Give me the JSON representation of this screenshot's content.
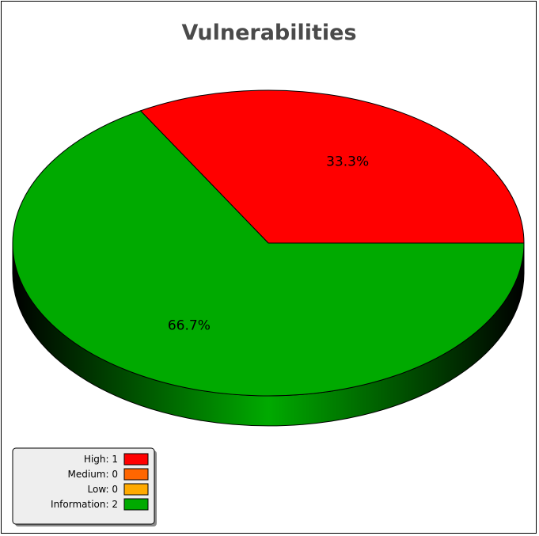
{
  "chart_data": {
    "type": "pie",
    "title": "Vulnerabilities",
    "slices": [
      {
        "label": "High",
        "value": 1,
        "color": "#ff0000",
        "percent_label": "33.3%"
      },
      {
        "label": "Medium",
        "value": 0,
        "color": "#ff6600",
        "percent_label": ""
      },
      {
        "label": "Low",
        "value": 0,
        "color": "#ffaa00",
        "percent_label": ""
      },
      {
        "label": "Information",
        "value": 2,
        "color": "#00aa00",
        "percent_label": "66.7%"
      }
    ],
    "style": "3d",
    "legend": {
      "placement": "bottom-left",
      "entries": [
        "High: 1",
        "Medium: 0",
        "Low: 0",
        "Information: 2"
      ]
    }
  }
}
